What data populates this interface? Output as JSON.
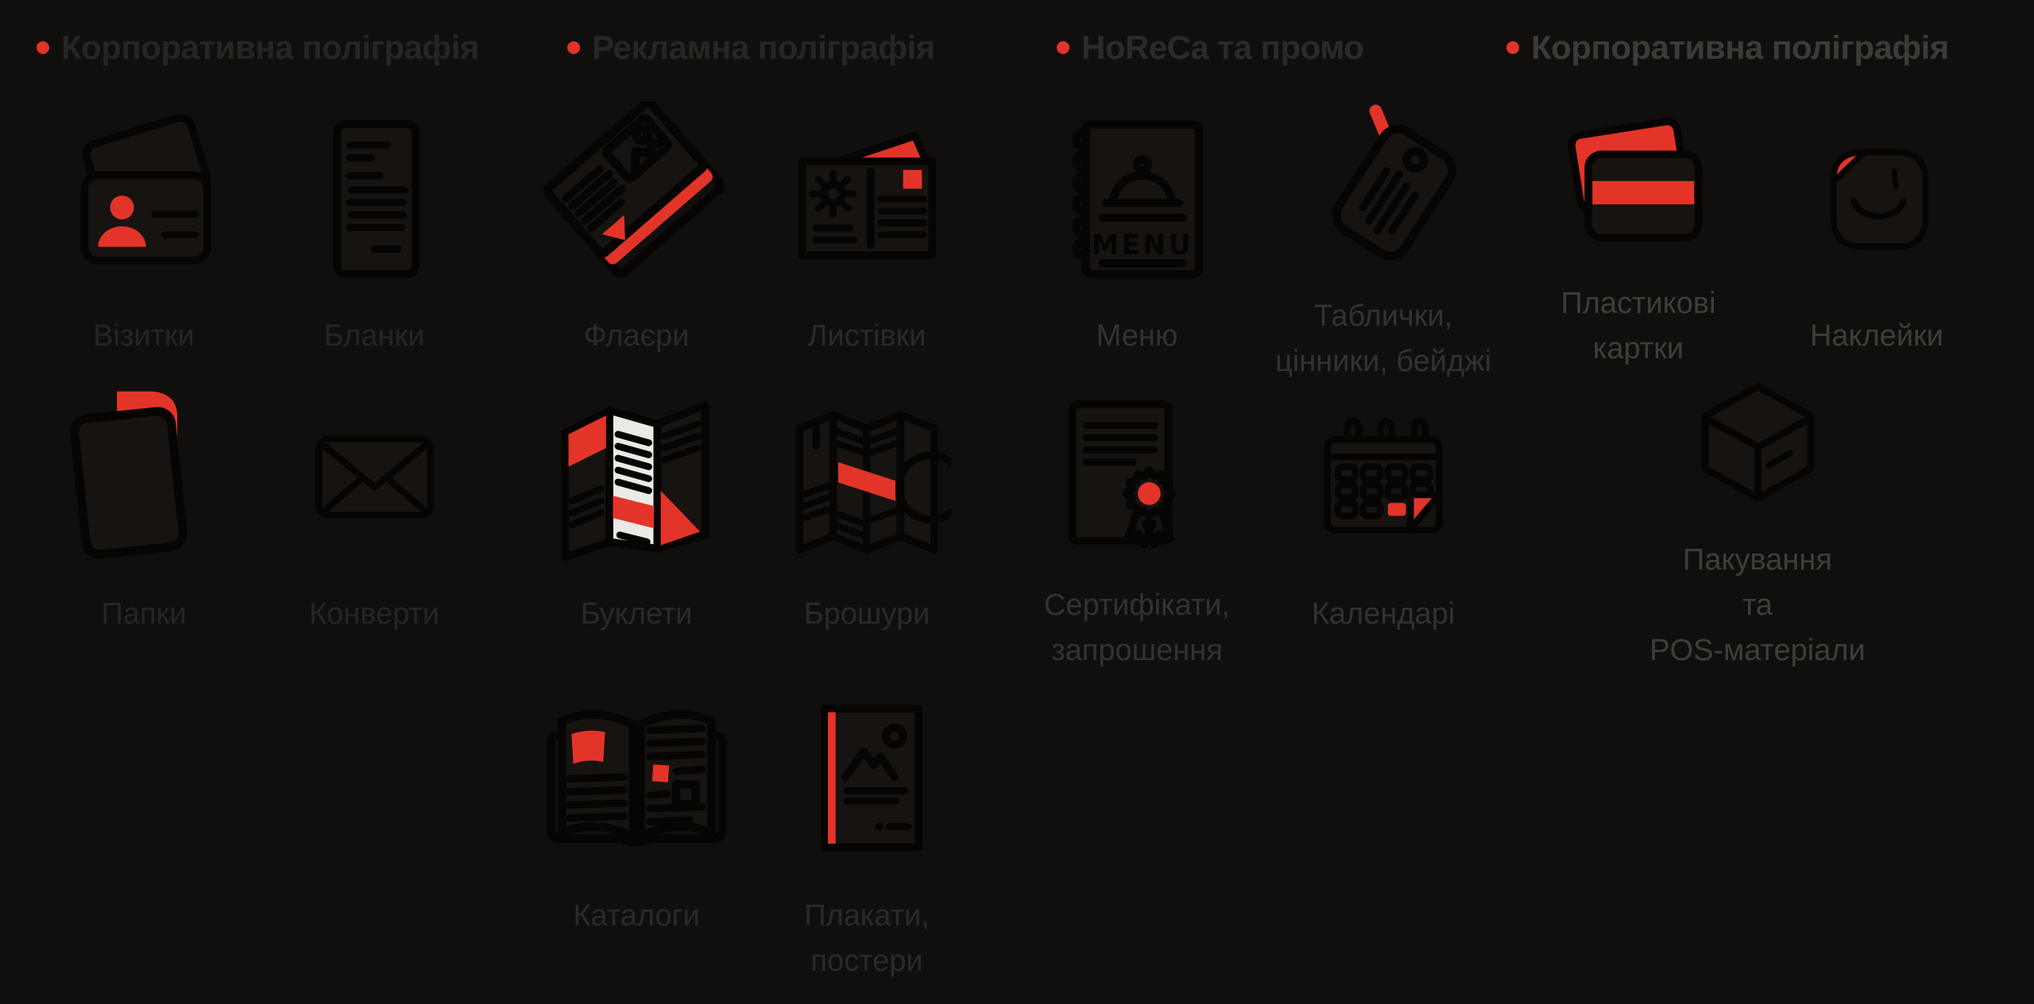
{
  "colors": {
    "background": "#110f0d",
    "accent_red": "#e33429",
    "icon_stroke": "#070503",
    "icon_fill": "#161310",
    "paper_white": "#eceae5"
  },
  "menu": {
    "columns": [
      {
        "id": "corporate",
        "header": "Корпоративна поліграфія",
        "header_color": "#262522",
        "label_color": "#262522",
        "items": [
          {
            "label": "Візитки",
            "icon": "business-cards-icon"
          },
          {
            "label": "Бланки",
            "icon": "letterhead-icon"
          },
          {
            "label": "Папки",
            "icon": "folder-icon"
          },
          {
            "label": "Конверти",
            "icon": "envelope-icon"
          }
        ]
      },
      {
        "id": "advertising",
        "header": "Рекламна поліграфія",
        "header_color": "#272623",
        "label_color": "#2b2a27",
        "items": [
          {
            "label": "Флаєри",
            "icon": "flyers-icon"
          },
          {
            "label": "Листівки",
            "icon": "postcard-icon"
          },
          {
            "label": "Буклети",
            "icon": "booklet-icon"
          },
          {
            "label": "Брошури",
            "icon": "brochure-icon"
          },
          {
            "label": "Каталоги",
            "icon": "catalog-icon"
          },
          {
            "label": "Плакати,\nпостери",
            "icon": "poster-icon"
          }
        ]
      },
      {
        "id": "horeca-promo",
        "header": "HoReCa та промо",
        "header_color": "#2b2a27",
        "label_color": "#343230",
        "items": [
          {
            "label": "Меню",
            "icon": "menu-book-icon"
          },
          {
            "label": "Таблички,\nцінники, бейджі",
            "icon": "hang-tag-icon"
          },
          {
            "label": "Сертифікати,\nзапрошення",
            "icon": "certificate-icon"
          },
          {
            "label": "Календарі",
            "icon": "calendar-icon"
          }
        ]
      },
      {
        "id": "corporate-2",
        "header": "Корпоративна поліграфія",
        "header_color": "#3c3a36",
        "label_color": "#403d39",
        "items": [
          {
            "label": "Пластикові\nкартки",
            "icon": "plastic-cards-icon"
          },
          {
            "label": "Наклейки",
            "icon": "sticker-icon"
          },
          {
            "label": "Пакування\nта\nPOS-матеріали",
            "icon": "package-box-icon",
            "wide": true
          }
        ]
      }
    ]
  }
}
